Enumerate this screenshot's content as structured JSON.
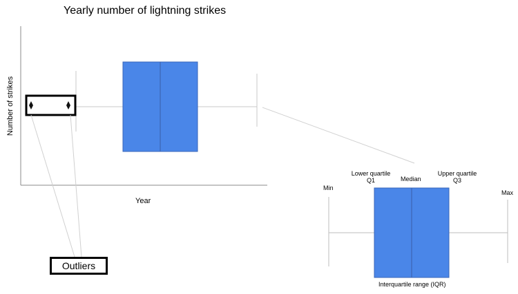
{
  "title": "Yearly number of lightning strikes",
  "xlabel": "Year",
  "ylabel": "Number of strikes",
  "callout": "Outliers",
  "detail": {
    "min": "Min",
    "max": "Max",
    "lower_quartile": "Lower quartile",
    "q1": "Q1",
    "median": "Median",
    "upper_quartile": "Upper quartile",
    "q3": "Q3",
    "iqr": "Interquartile range (IQR)"
  },
  "colors": {
    "box": "#4a86e8",
    "box_edge": "#3a66b8",
    "line": "#b0b0b0",
    "axis": "#888888"
  }
}
